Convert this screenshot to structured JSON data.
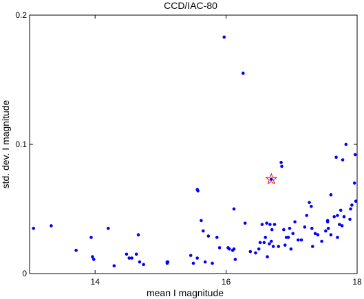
{
  "chart_data": {
    "type": "scatter",
    "title": "CCD/IAC-80",
    "xlabel": "mean I magnitude",
    "ylabel": "std. dev. I magnitude",
    "xlim": [
      13,
      18
    ],
    "ylim": [
      0,
      0.2
    ],
    "xticks": [
      14,
      16,
      18
    ],
    "yticks": [
      0,
      0.1,
      0.2
    ],
    "xtick_labels": [
      "14",
      "16",
      "18"
    ],
    "ytick_labels": [
      "0",
      "0.1",
      "0.2"
    ],
    "grid": false,
    "series": [
      {
        "marker": "dot",
        "color": "#0000ff",
        "points": [
          [
            13.06,
            0.035
          ],
          [
            13.33,
            0.037
          ],
          [
            13.71,
            0.018
          ],
          [
            13.94,
            0.028
          ],
          [
            13.96,
            0.013
          ],
          [
            13.98,
            0.011
          ],
          [
            14.2,
            0.035
          ],
          [
            14.29,
            0.006
          ],
          [
            14.48,
            0.015
          ],
          [
            14.52,
            0.012
          ],
          [
            14.56,
            0.012
          ],
          [
            14.63,
            0.015
          ],
          [
            14.66,
            0.03
          ],
          [
            14.68,
            0.009
          ],
          [
            14.74,
            0.007
          ],
          [
            15.1,
            0.008
          ],
          [
            15.1,
            0.009
          ],
          [
            15.11,
            0.009
          ],
          [
            15.46,
            0.014
          ],
          [
            15.5,
            0.008
          ],
          [
            15.56,
            0.012
          ],
          [
            15.57,
            0.064
          ],
          [
            15.56,
            0.065
          ],
          [
            15.62,
            0.041
          ],
          [
            15.65,
            0.033
          ],
          [
            15.68,
            0.009
          ],
          [
            15.73,
            0.029
          ],
          [
            15.79,
            0.008
          ],
          [
            15.86,
            0.028
          ],
          [
            15.9,
            0.02
          ],
          [
            15.97,
            0.183
          ],
          [
            16.03,
            0.02
          ],
          [
            16.05,
            0.019
          ],
          [
            16.1,
            0.018
          ],
          [
            16.12,
            0.05
          ],
          [
            16.12,
            0.019
          ],
          [
            16.14,
            0.011
          ],
          [
            16.26,
            0.155
          ],
          [
            16.29,
            0.039
          ],
          [
            16.37,
            0.017
          ],
          [
            16.45,
            0.016
          ],
          [
            16.5,
            0.019
          ],
          [
            16.52,
            0.024
          ],
          [
            16.55,
            0.038
          ],
          [
            16.58,
            0.024
          ],
          [
            16.6,
            0.028
          ],
          [
            16.62,
            0.039
          ],
          [
            16.63,
            0.013
          ],
          [
            16.66,
            0.023
          ],
          [
            16.67,
            0.038
          ],
          [
            16.69,
            0.025
          ],
          [
            16.7,
            0.034
          ],
          [
            16.72,
            0.021
          ],
          [
            16.74,
            0.038
          ],
          [
            16.8,
            0.021
          ],
          [
            16.84,
            0.086
          ],
          [
            16.85,
            0.083
          ],
          [
            16.88,
            0.034
          ],
          [
            16.9,
            0.022
          ],
          [
            16.92,
            0.028
          ],
          [
            16.95,
            0.028
          ],
          [
            16.97,
            0.035
          ],
          [
            16.99,
            0.019
          ],
          [
            17.02,
            0.031
          ],
          [
            17.05,
            0.04
          ],
          [
            17.1,
            0.026
          ],
          [
            17.15,
            0.026
          ],
          [
            17.2,
            0.036
          ],
          [
            17.23,
            0.045
          ],
          [
            17.27,
            0.055
          ],
          [
            17.3,
            0.052
          ],
          [
            17.31,
            0.035
          ],
          [
            17.32,
            0.021
          ],
          [
            17.36,
            0.031
          ],
          [
            17.4,
            0.03
          ],
          [
            17.46,
            0.025
          ],
          [
            17.52,
            0.033
          ],
          [
            17.55,
            0.041
          ],
          [
            17.56,
            0.035
          ],
          [
            17.6,
            0.061
          ],
          [
            17.65,
            0.044
          ],
          [
            17.68,
            0.09
          ],
          [
            17.7,
            0.045
          ],
          [
            17.73,
            0.038
          ],
          [
            17.75,
            0.049
          ],
          [
            17.77,
            0.037
          ],
          [
            17.78,
            0.088
          ],
          [
            17.8,
            0.044
          ],
          [
            17.83,
            0.1
          ],
          [
            17.89,
            0.042
          ],
          [
            17.92,
            0.053
          ],
          [
            17.96,
            0.07
          ],
          [
            17.97,
            0.092
          ],
          [
            17.98,
            0.056
          ],
          [
            17.6,
            0.03
          ],
          [
            17.7,
            0.028
          ],
          [
            17.55,
            0.04
          ],
          [
            17.9,
            0.05
          ]
        ]
      },
      {
        "marker": "star",
        "color": "#ff0000",
        "points": [
          [
            16.69,
            0.073
          ]
        ]
      },
      {
        "marker": "dot",
        "color": "#0000ff",
        "points": [
          [
            16.69,
            0.073
          ]
        ]
      }
    ]
  }
}
